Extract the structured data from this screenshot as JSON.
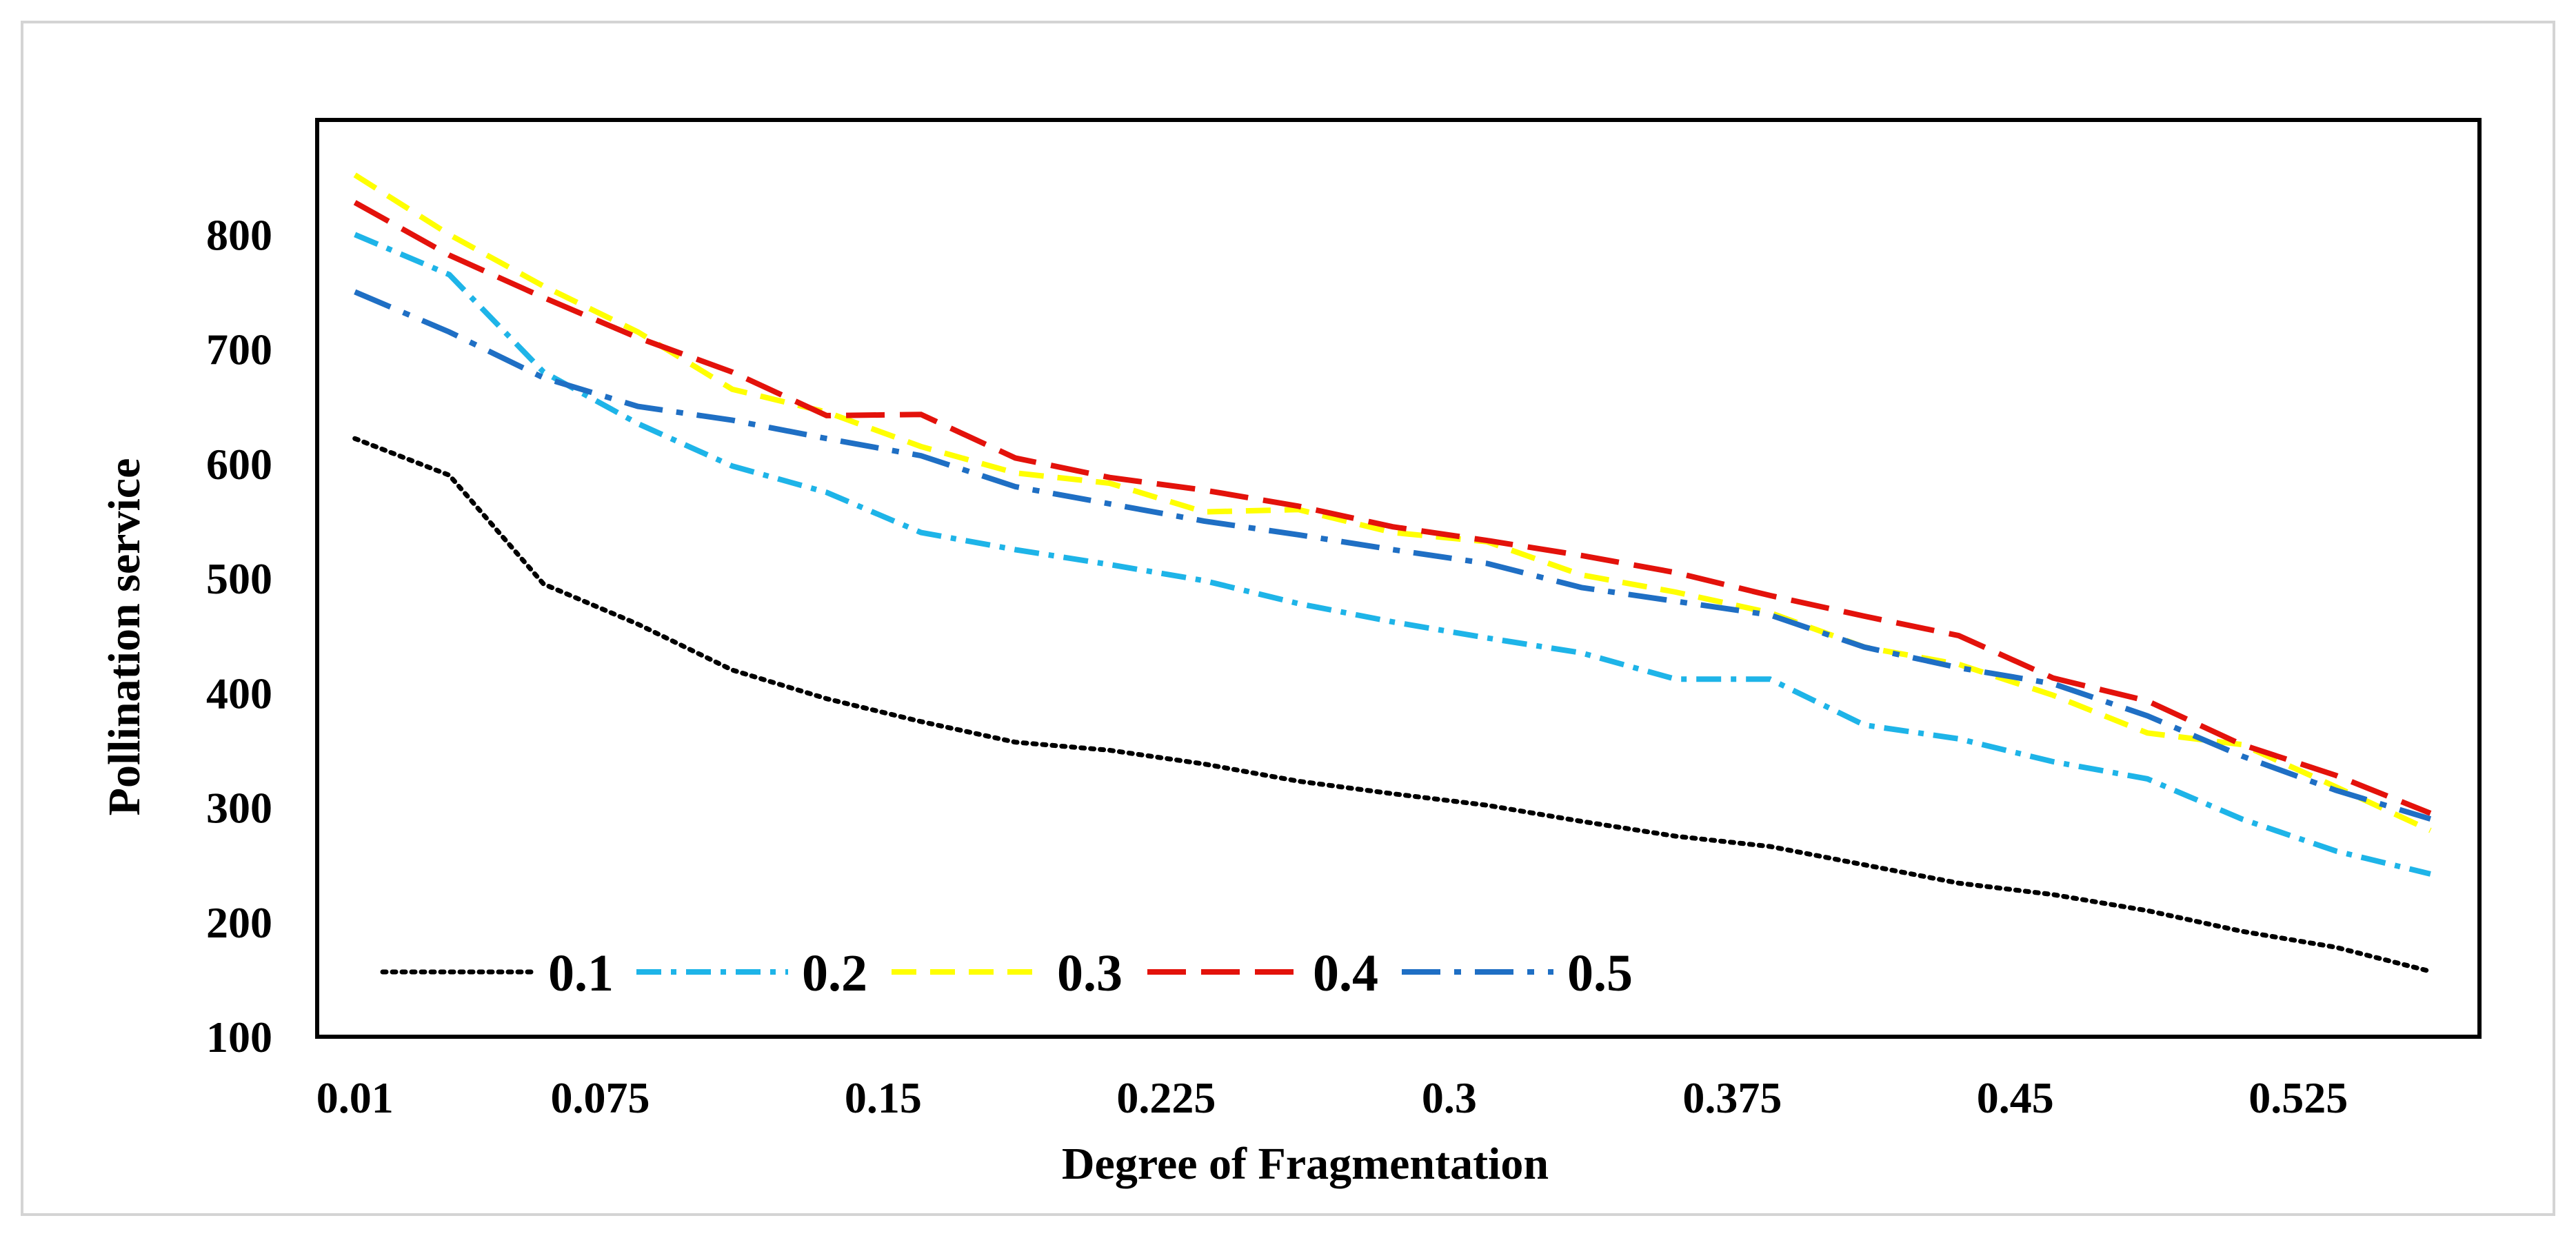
{
  "chart_data": {
    "type": "line",
    "title": "",
    "xlabel": "Degree of Fragmentation",
    "ylabel": "Pollination service",
    "x": [
      0.01,
      0.035,
      0.06,
      0.085,
      0.11,
      0.135,
      0.16,
      0.185,
      0.21,
      0.235,
      0.26,
      0.285,
      0.31,
      0.335,
      0.36,
      0.385,
      0.41,
      0.435,
      0.46,
      0.485,
      0.51,
      0.535,
      0.56
    ],
    "xticks": [
      0.01,
      0.075,
      0.15,
      0.225,
      0.3,
      0.375,
      0.45,
      0.525
    ],
    "xtick_labels": [
      "0.01",
      "0.075",
      "0.15",
      "0.225",
      "0.3",
      "0.375",
      "0.45",
      "0.525"
    ],
    "xlim": [
      0.0,
      0.573
    ],
    "ylim": [
      100,
      900
    ],
    "yticks": [
      100,
      200,
      300,
      400,
      500,
      600,
      700,
      800
    ],
    "ytick_labels": [
      "100",
      "200",
      "300",
      "400",
      "500",
      "600",
      "700",
      "800"
    ],
    "grid": false,
    "legend_position": "bottom-left inside",
    "series": [
      {
        "name": "0.1",
        "color": "#000000",
        "dash": "dotted",
        "values": [
          622,
          590,
          495,
          460,
          420,
          395,
          375,
          357,
          350,
          338,
          323,
          312,
          302,
          288,
          275,
          266,
          250,
          234,
          224,
          210,
          192,
          178,
          157
        ]
      },
      {
        "name": "0.2",
        "color": "#1eb4e8",
        "dash": "dashdot",
        "values": [
          800,
          765,
          680,
          635,
          598,
          575,
          540,
          525,
          512,
          498,
          478,
          462,
          448,
          435,
          412,
          412,
          372,
          360,
          340,
          325,
          290,
          262,
          242
        ]
      },
      {
        "name": "0.3",
        "color": "#ffff00",
        "dash": "dashed",
        "values": [
          852,
          800,
          755,
          715,
          665,
          645,
          615,
          592,
          583,
          558,
          560,
          540,
          532,
          503,
          488,
          470,
          440,
          425,
          398,
          365,
          355,
          318,
          280
        ]
      },
      {
        "name": "0.4",
        "color": "#e3120b",
        "dash": "longdash",
        "values": [
          828,
          782,
          745,
          710,
          680,
          642,
          643,
          605,
          588,
          577,
          563,
          545,
          533,
          520,
          505,
          485,
          467,
          450,
          413,
          393,
          355,
          328,
          295
        ]
      },
      {
        "name": "0.5",
        "color": "#1f6fc4",
        "dash": "longdashdot",
        "values": [
          750,
          715,
          675,
          650,
          638,
          622,
          607,
          580,
          565,
          550,
          538,
          525,
          513,
          492,
          480,
          468,
          440,
          422,
          408,
          380,
          345,
          315,
          290
        ]
      }
    ]
  }
}
